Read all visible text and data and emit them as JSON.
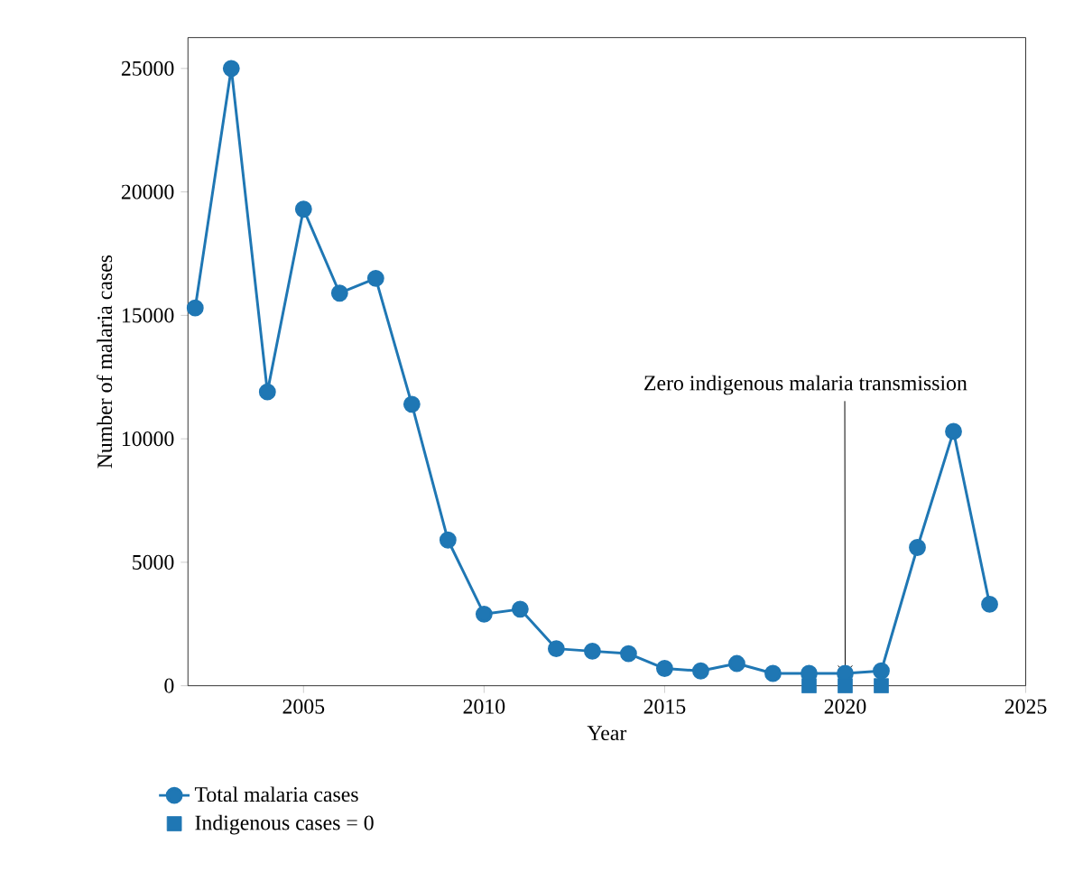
{
  "chart_data": {
    "type": "line",
    "xlabel": "Year",
    "ylabel": "Number of malaria cases",
    "x": [
      2002,
      2003,
      2004,
      2005,
      2006,
      2007,
      2008,
      2009,
      2010,
      2011,
      2012,
      2013,
      2014,
      2015,
      2016,
      2017,
      2018,
      2019,
      2020,
      2021,
      2022,
      2023,
      2024
    ],
    "series": [
      {
        "name": "Total malaria cases",
        "color": "#1f77b4",
        "marker": "circle",
        "values": [
          15300,
          25000,
          11900,
          19300,
          15900,
          16500,
          11400,
          5900,
          2900,
          3100,
          1500,
          1400,
          1300,
          700,
          600,
          900,
          500,
          500,
          500,
          600,
          5600,
          10300,
          3300
        ]
      },
      {
        "name": "Indigenous cases = 0",
        "type": "scatter",
        "color": "#1f77b4",
        "marker": "square",
        "x": [
          2019,
          2020,
          2021
        ],
        "values": [
          0,
          0,
          0
        ]
      }
    ],
    "annotations": [
      {
        "text": "Zero indigenous malaria transmission",
        "x": 2020,
        "y": 500
      }
    ],
    "xlim": [
      2001.8,
      2025
    ],
    "ylim": [
      0,
      26250
    ],
    "xticks": [
      2005,
      2010,
      2015,
      2020,
      2025
    ],
    "yticks": [
      0,
      5000,
      10000,
      15000,
      20000,
      25000
    ],
    "grid": false,
    "legend": "bottom",
    "line_style": "solid"
  }
}
